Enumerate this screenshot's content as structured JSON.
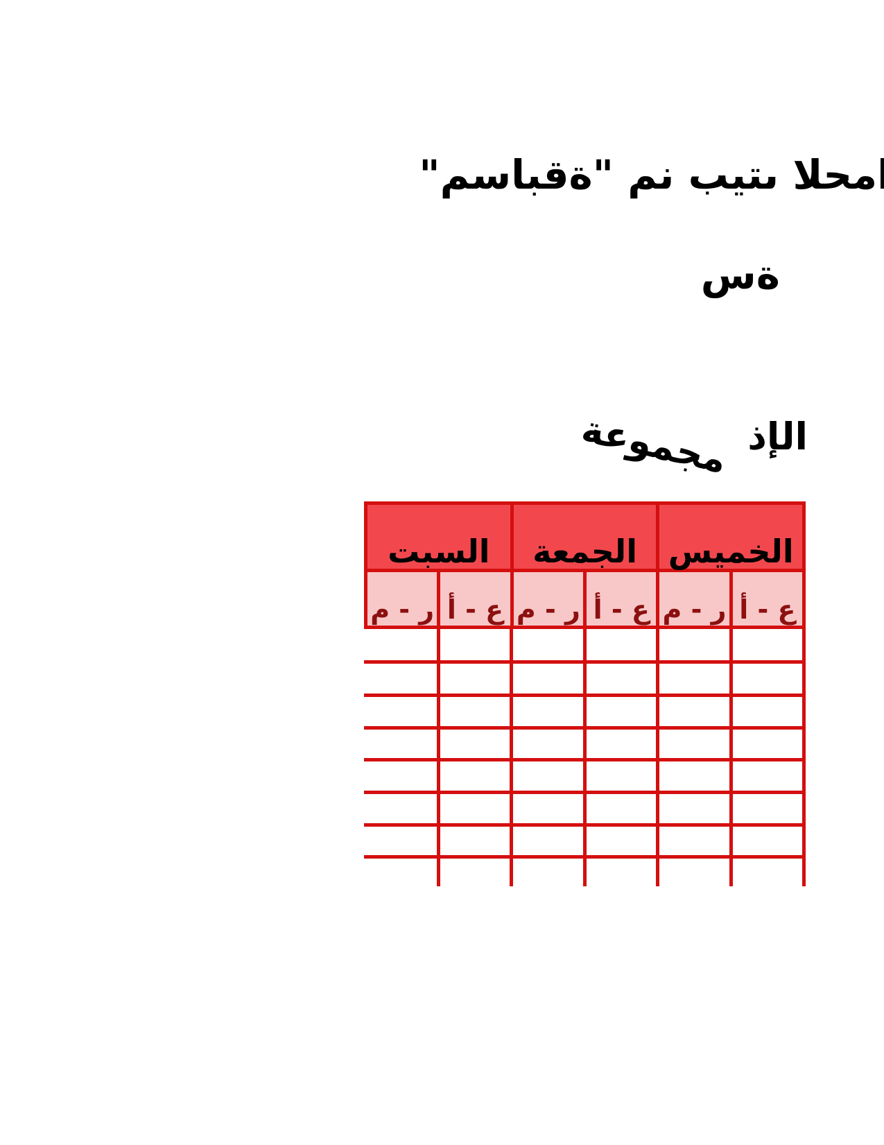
{
  "page": {
    "background": "#ffffff"
  },
  "title": {
    "line1": "\"مسابقة\" من بيتى الحما",
    "line2": "سة"
  },
  "section_heading": {
    "word1": "مجموعة",
    "word2": "الإذ"
  },
  "table": {
    "days": [
      {
        "label": "الخميس",
        "sub": [
          "ع - أ",
          "ر - م"
        ]
      },
      {
        "label": "الجمعة",
        "sub": [
          "ع - أ",
          "ر - م"
        ]
      },
      {
        "label": "السبت",
        "sub": [
          "ع - أ",
          "ر - م"
        ]
      }
    ],
    "sub_labels_order": [
      "ع - أ",
      "ر - م",
      "ع - أ",
      "ر - م",
      "ع - أ",
      "ر - م"
    ],
    "body_rows": 7,
    "body_cols": 6,
    "open_bottom": true,
    "cell_values": []
  },
  "colors": {
    "border_red": "#D40F0F",
    "day_fill": "#F2484D",
    "sub_fill": "#F8C8C8",
    "sub_text": "#8C1010",
    "title_text": "#000000"
  }
}
